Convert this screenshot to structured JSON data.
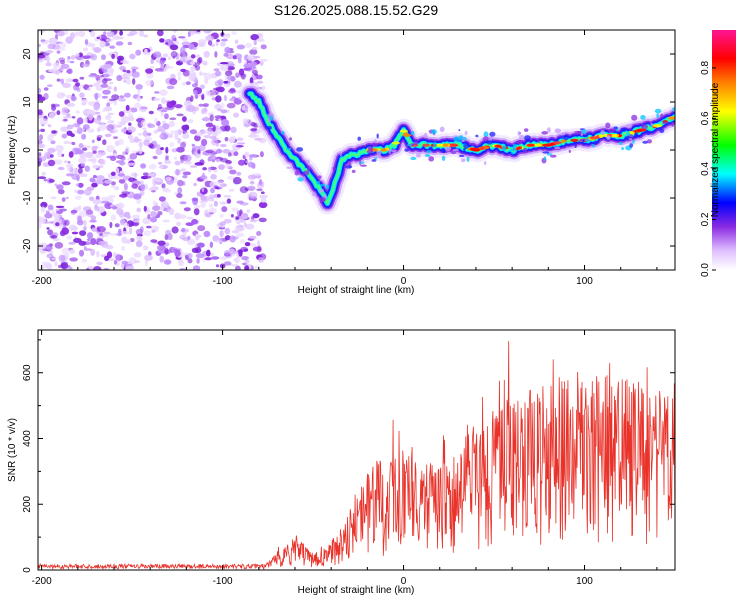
{
  "title": "S126.2025.088.15.52.G29",
  "chart_data": [
    {
      "type": "heatmap",
      "xlabel": "Height of straight line (km)",
      "ylabel": "Frequency (Hz)",
      "xlim": [
        -202,
        150
      ],
      "ylim": [
        -25,
        25
      ],
      "xticks": [
        -200,
        -100,
        0,
        100
      ],
      "xtick_labels": [
        "-200",
        "-100",
        "0",
        "100"
      ],
      "yticks": [
        -20,
        -10,
        0,
        10,
        20
      ],
      "ytick_labels": [
        "-20",
        "-10",
        "0",
        "10",
        "20"
      ],
      "noise_region_x": [
        -202,
        -77
      ],
      "trace": {
        "x": [
          -85,
          -80,
          -75,
          -70,
          -65,
          -60,
          -55,
          -50,
          -45,
          -42,
          -38,
          -34,
          -30,
          -25,
          -20,
          -15,
          -10,
          -5,
          0,
          2,
          5,
          10,
          20,
          30,
          40,
          50,
          60,
          70,
          80,
          90,
          100,
          110,
          120,
          130,
          140,
          150
        ],
        "y": [
          12,
          10,
          6,
          3,
          0,
          -2,
          -4,
          -6,
          -9,
          -11,
          -7,
          -2,
          -1,
          -1,
          0,
          0,
          0,
          1,
          4,
          3,
          1,
          1,
          1,
          1,
          0,
          1,
          0,
          1,
          1,
          2,
          2,
          3,
          3,
          4,
          5,
          7
        ]
      },
      "colorbar": {
        "label": "Normalized spectral amplitude",
        "range": [
          0,
          0.95
        ],
        "ticks": [
          0.0,
          0.2,
          0.4,
          0.6,
          0.8
        ],
        "tick_labels": [
          "0.0",
          "0.2",
          "0.4",
          "0.6",
          "0.8"
        ],
        "colors": [
          "#ffffff",
          "#d9b3ff",
          "#8a2be2",
          "#0000ff",
          "#00ffff",
          "#00ff00",
          "#ffff00",
          "#ff8000",
          "#ff0000",
          "#ff0080"
        ]
      }
    },
    {
      "type": "line",
      "xlabel": "Height of straight line (km)",
      "ylabel": "SNR (10 * v/v)",
      "xlim": [
        -202,
        150
      ],
      "ylim": [
        0,
        730
      ],
      "xticks": [
        -200,
        -100,
        0,
        100
      ],
      "xtick_labels": [
        "-200",
        "-100",
        "0",
        "100"
      ],
      "yticks": [
        0,
        200,
        400,
        600
      ],
      "ytick_labels": [
        "0",
        "200",
        "400",
        "600"
      ],
      "series_color": "#e8322a",
      "envelope": {
        "x": [
          -202,
          -80,
          -75,
          -70,
          -65,
          -60,
          -55,
          -50,
          -45,
          -40,
          -35,
          -30,
          -25,
          -20,
          -15,
          -10,
          -5,
          0,
          5,
          10,
          20,
          30,
          40,
          50,
          60,
          70,
          80,
          90,
          100,
          110,
          120,
          130,
          140,
          150
        ],
        "y": [
          12,
          12,
          20,
          40,
          60,
          90,
          60,
          40,
          50,
          70,
          110,
          160,
          200,
          240,
          260,
          280,
          300,
          330,
          300,
          280,
          250,
          300,
          380,
          400,
          430,
          440,
          460,
          480,
          470,
          480,
          470,
          460,
          450,
          440
        ]
      }
    }
  ]
}
